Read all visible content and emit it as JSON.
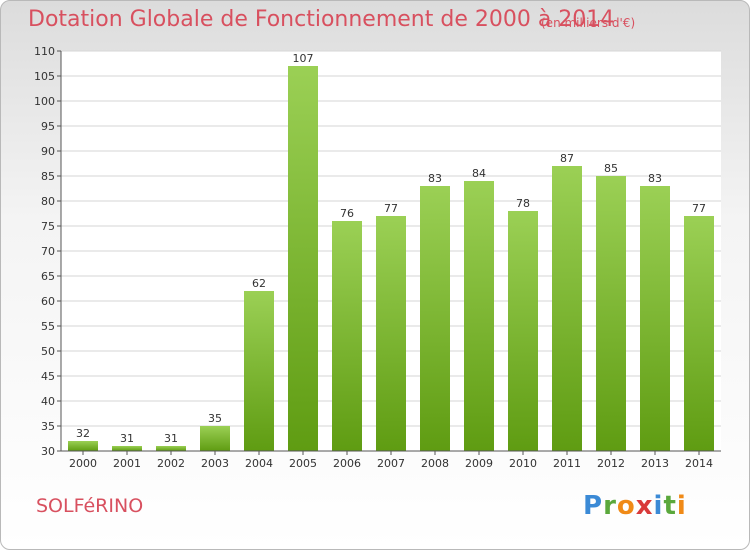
{
  "header": {
    "title": "Dotation Globale de Fonctionnement de 2000 à 2014",
    "unit": "(en milliers d'€)"
  },
  "footer": {
    "commune": "SOLFéRINO",
    "logo": "Proxiti"
  },
  "colors": {
    "bar_top": "#9bd055",
    "bar_bottom": "#5f9c12",
    "title": "#d8505f"
  },
  "chart_data": {
    "type": "bar",
    "title": "Dotation Globale de Fonctionnement de 2000 à 2014",
    "subtitle": "(en milliers d'€)",
    "categories": [
      "2000",
      "2001",
      "2002",
      "2003",
      "2004",
      "2005",
      "2006",
      "2007",
      "2008",
      "2009",
      "2010",
      "2011",
      "2012",
      "2013",
      "2014"
    ],
    "values": [
      32,
      31,
      31,
      35,
      62,
      107,
      76,
      77,
      83,
      84,
      78,
      87,
      85,
      83,
      77
    ],
    "ylim": [
      30,
      110
    ],
    "yticks": [
      30,
      35,
      40,
      45,
      50,
      55,
      60,
      65,
      70,
      75,
      80,
      85,
      90,
      95,
      100,
      105,
      110
    ],
    "grid": true,
    "legend": "none"
  }
}
